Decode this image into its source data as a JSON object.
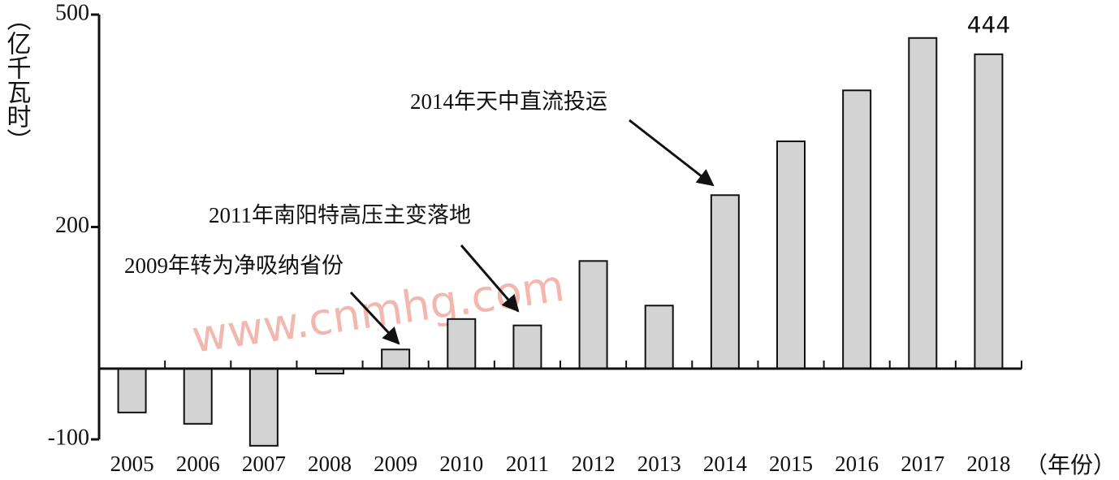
{
  "chart_data": {
    "type": "bar",
    "ylabel": "（亿千瓦时）",
    "xlabel": "（年份）",
    "categories": [
      "2005",
      "2006",
      "2007",
      "2008",
      "2009",
      "2010",
      "2011",
      "2012",
      "2013",
      "2014",
      "2015",
      "2016",
      "2017",
      "2018"
    ],
    "values": [
      -62,
      -78,
      -109,
      -7,
      27,
      70,
      61,
      152,
      89,
      245,
      321,
      393,
      467,
      444
    ],
    "color": "#d3d3d3",
    "ylim": [
      -100,
      500
    ],
    "yticks": [
      -100,
      200,
      500
    ],
    "annotations": [
      "2014年天中直流投运",
      "2011年南阳特高压主变落地",
      "2009年转为净吸纳省份"
    ],
    "watermark": "www.cnmhg.com"
  }
}
